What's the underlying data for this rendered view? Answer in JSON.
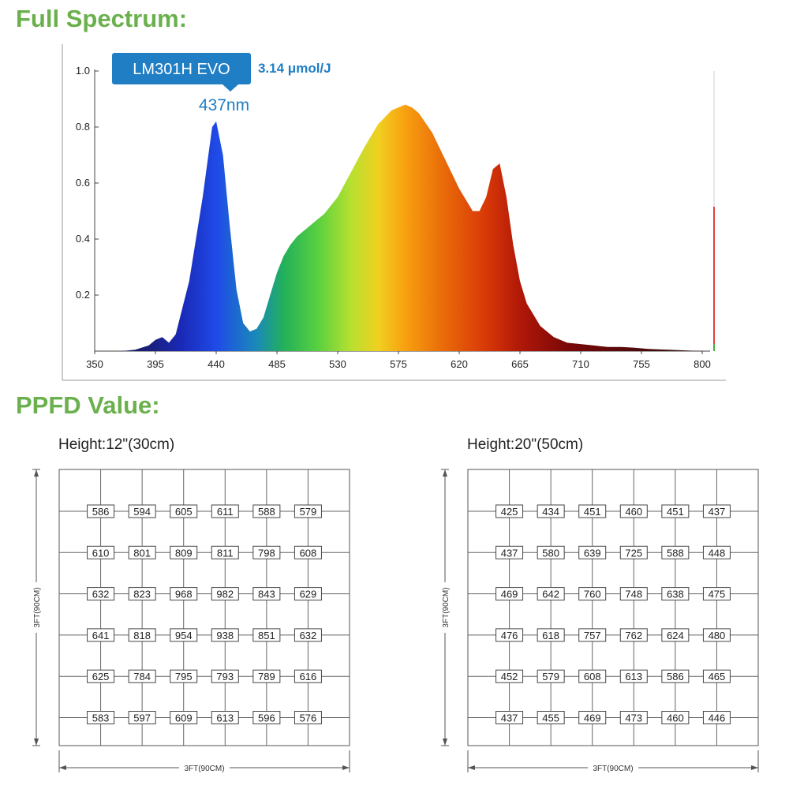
{
  "headings": {
    "spectrum": "Full Spectrum:",
    "ppfd": "PPFD Value:"
  },
  "chart_data": [
    {
      "type": "area",
      "title": "",
      "xlabel": "",
      "ylabel": "",
      "xlim": [
        350,
        805
      ],
      "ylim": [
        0,
        1.0
      ],
      "x_ticks": [
        "350",
        "395",
        "440",
        "485",
        "530",
        "575",
        "620",
        "665",
        "710",
        "755",
        "800"
      ],
      "y_ticks": [
        "0.2",
        "0.4",
        "0.6",
        "0.8",
        "1.0"
      ],
      "grid": false,
      "series": [
        {
          "x": [
            350,
            370,
            380,
            390,
            395,
            400,
            405,
            410,
            420,
            430,
            437,
            440,
            445,
            450,
            455,
            460,
            465,
            470,
            475,
            480,
            485,
            490,
            495,
            500,
            505,
            510,
            515,
            520,
            530,
            540,
            550,
            560,
            570,
            580,
            585,
            590,
            600,
            610,
            620,
            630,
            635,
            640,
            645,
            650,
            655,
            660,
            665,
            670,
            680,
            690,
            700,
            710,
            720,
            730,
            740,
            750,
            760,
            780,
            800
          ],
          "y": [
            0.0,
            0.0,
            0.005,
            0.02,
            0.04,
            0.05,
            0.03,
            0.06,
            0.25,
            0.55,
            0.8,
            0.82,
            0.7,
            0.45,
            0.22,
            0.1,
            0.07,
            0.08,
            0.12,
            0.2,
            0.28,
            0.34,
            0.38,
            0.41,
            0.43,
            0.45,
            0.47,
            0.49,
            0.55,
            0.64,
            0.73,
            0.81,
            0.86,
            0.88,
            0.87,
            0.85,
            0.78,
            0.68,
            0.58,
            0.5,
            0.5,
            0.55,
            0.65,
            0.67,
            0.55,
            0.38,
            0.25,
            0.17,
            0.09,
            0.05,
            0.03,
            0.025,
            0.02,
            0.015,
            0.015,
            0.012,
            0.008,
            0.004,
            0.0
          ]
        }
      ],
      "annotations": {
        "badge": "LM301H EVO",
        "efficiency": "3.14 μmol/J",
        "peak_label": "437nm"
      }
    },
    {
      "type": "table",
      "title": "Height:12\"(30cm)",
      "xlabel": "3FT(90CM)",
      "ylabel": "3FT(90CM)",
      "rows": [
        [
          "586",
          "594",
          "605",
          "611",
          "588",
          "579"
        ],
        [
          "610",
          "801",
          "809",
          "811",
          "798",
          "608"
        ],
        [
          "632",
          "823",
          "968",
          "982",
          "843",
          "629"
        ],
        [
          "641",
          "818",
          "954",
          "938",
          "851",
          "632"
        ],
        [
          "625",
          "784",
          "795",
          "793",
          "789",
          "616"
        ],
        [
          "583",
          "597",
          "609",
          "613",
          "596",
          "576"
        ]
      ]
    },
    {
      "type": "table",
      "title": "Height:20\"(50cm)",
      "xlabel": "3FT(90CM)",
      "ylabel": "3FT(90CM)",
      "rows": [
        [
          "425",
          "434",
          "451",
          "460",
          "451",
          "437"
        ],
        [
          "437",
          "580",
          "639",
          "725",
          "588",
          "448"
        ],
        [
          "469",
          "642",
          "760",
          "748",
          "638",
          "475"
        ],
        [
          "476",
          "618",
          "757",
          "762",
          "624",
          "480"
        ],
        [
          "452",
          "579",
          "608",
          "613",
          "586",
          "465"
        ],
        [
          "437",
          "455",
          "469",
          "473",
          "460",
          "446"
        ]
      ]
    }
  ],
  "colors": {
    "heading": "#6ab04c",
    "badge": "#1f7ec4",
    "accent_text": "#1f7ec4"
  }
}
